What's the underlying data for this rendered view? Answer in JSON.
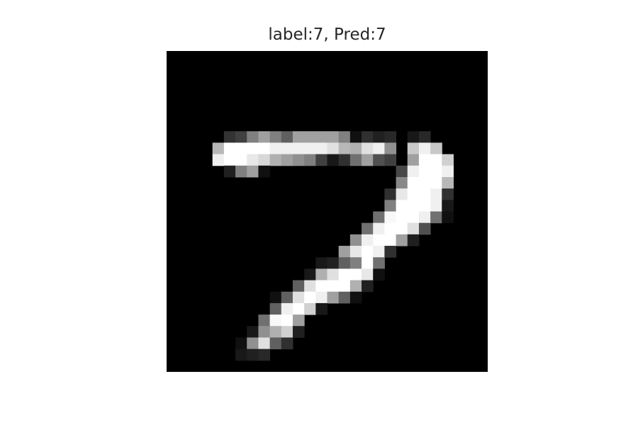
{
  "figure": {
    "title": "label:7, Pred:7"
  },
  "image": {
    "colormap": "gray",
    "grid_rows": 28,
    "grid_cols": 28,
    "pixels": [
      [
        0,
        0,
        0,
        0,
        0,
        0,
        0,
        0,
        0,
        0,
        0,
        0,
        0,
        0,
        0,
        0,
        0,
        0,
        0,
        0,
        0,
        0,
        0,
        0,
        0,
        0,
        0,
        0
      ],
      [
        0,
        0,
        0,
        0,
        0,
        0,
        0,
        0,
        0,
        0,
        0,
        0,
        0,
        0,
        0,
        0,
        0,
        0,
        0,
        0,
        0,
        0,
        0,
        0,
        0,
        0,
        0,
        0
      ],
      [
        0,
        0,
        0,
        0,
        0,
        0,
        0,
        0,
        0,
        0,
        0,
        0,
        0,
        0,
        0,
        0,
        0,
        0,
        0,
        0,
        0,
        0,
        0,
        0,
        0,
        0,
        0,
        0
      ],
      [
        0,
        0,
        0,
        0,
        0,
        0,
        0,
        0,
        0,
        0,
        0,
        0,
        0,
        0,
        0,
        0,
        0,
        0,
        0,
        0,
        0,
        0,
        0,
        0,
        0,
        0,
        0,
        0
      ],
      [
        0,
        0,
        0,
        0,
        0,
        0,
        0,
        0,
        0,
        0,
        0,
        0,
        0,
        0,
        0,
        0,
        0,
        0,
        0,
        0,
        0,
        0,
        0,
        0,
        0,
        0,
        0,
        0
      ],
      [
        0,
        0,
        0,
        0,
        0,
        0,
        0,
        0,
        0,
        0,
        0,
        0,
        0,
        0,
        0,
        0,
        0,
        0,
        0,
        0,
        0,
        0,
        0,
        0,
        0,
        0,
        0,
        0
      ],
      [
        0,
        0,
        0,
        0,
        0,
        0,
        0,
        0,
        0,
        0,
        0,
        0,
        0,
        0,
        0,
        0,
        0,
        0,
        0,
        0,
        0,
        0,
        0,
        0,
        0,
        0,
        0,
        0
      ],
      [
        0,
        0,
        0,
        0,
        0,
        51,
        64,
        128,
        160,
        128,
        96,
        160,
        160,
        160,
        160,
        128,
        16,
        48,
        32,
        40,
        0,
        24,
        40,
        0,
        0,
        0,
        0,
        0
      ],
      [
        0,
        0,
        0,
        0,
        184,
        255,
        255,
        255,
        255,
        240,
        240,
        240,
        240,
        240,
        224,
        184,
        176,
        224,
        240,
        144,
        0,
        200,
        240,
        200,
        0,
        0,
        0,
        0
      ],
      [
        0,
        0,
        0,
        0,
        240,
        255,
        255,
        232,
        216,
        176,
        160,
        144,
        128,
        64,
        24,
        48,
        112,
        160,
        80,
        64,
        0,
        160,
        255,
        255,
        208,
        0,
        0,
        0
      ],
      [
        0,
        0,
        0,
        0,
        0,
        32,
        128,
        160,
        16,
        0,
        0,
        0,
        0,
        0,
        0,
        0,
        0,
        0,
        0,
        0,
        72,
        240,
        255,
        255,
        240,
        0,
        0,
        0
      ],
      [
        0,
        0,
        0,
        0,
        0,
        0,
        0,
        0,
        0,
        0,
        0,
        0,
        0,
        0,
        0,
        0,
        0,
        0,
        0,
        0,
        136,
        255,
        255,
        255,
        184,
        0,
        0,
        0
      ],
      [
        0,
        0,
        0,
        0,
        0,
        0,
        0,
        0,
        0,
        0,
        0,
        0,
        0,
        0,
        0,
        0,
        0,
        0,
        0,
        48,
        232,
        255,
        255,
        240,
        48,
        0,
        0,
        0
      ],
      [
        0,
        0,
        0,
        0,
        0,
        0,
        0,
        0,
        0,
        0,
        0,
        0,
        0,
        0,
        0,
        0,
        0,
        0,
        0,
        128,
        255,
        255,
        255,
        240,
        24,
        0,
        0,
        0
      ],
      [
        0,
        0,
        0,
        0,
        0,
        0,
        0,
        0,
        0,
        0,
        0,
        0,
        0,
        0,
        0,
        0,
        0,
        0,
        112,
        248,
        255,
        255,
        240,
        112,
        16,
        0,
        0,
        0
      ],
      [
        0,
        0,
        0,
        0,
        0,
        0,
        0,
        0,
        0,
        0,
        0,
        0,
        0,
        0,
        0,
        0,
        0,
        112,
        240,
        255,
        255,
        224,
        80,
        0,
        0,
        0,
        0,
        0
      ],
      [
        0,
        0,
        0,
        0,
        0,
        0,
        0,
        0,
        0,
        0,
        0,
        0,
        0,
        0,
        0,
        0,
        144,
        240,
        255,
        255,
        160,
        32,
        0,
        0,
        0,
        0,
        0,
        0
      ],
      [
        0,
        0,
        0,
        0,
        0,
        0,
        0,
        0,
        0,
        0,
        0,
        0,
        0,
        0,
        0,
        160,
        232,
        255,
        240,
        48,
        0,
        0,
        0,
        0,
        0,
        0,
        0,
        0
      ],
      [
        0,
        0,
        0,
        0,
        0,
        0,
        0,
        0,
        0,
        0,
        0,
        0,
        0,
        24,
        32,
        96,
        128,
        255,
        112,
        0,
        0,
        0,
        0,
        0,
        0,
        0,
        0,
        0
      ],
      [
        0,
        0,
        0,
        0,
        0,
        0,
        0,
        0,
        0,
        0,
        0,
        0,
        24,
        176,
        224,
        255,
        255,
        232,
        16,
        0,
        0,
        0,
        0,
        0,
        0,
        0,
        0,
        0
      ],
      [
        0,
        0,
        0,
        0,
        0,
        0,
        0,
        0,
        0,
        0,
        0,
        96,
        224,
        255,
        255,
        255,
        176,
        32,
        0,
        0,
        0,
        0,
        0,
        0,
        0,
        0,
        0,
        0
      ],
      [
        0,
        0,
        0,
        0,
        0,
        0,
        0,
        0,
        0,
        16,
        96,
        224,
        255,
        240,
        160,
        96,
        16,
        0,
        0,
        0,
        0,
        0,
        0,
        0,
        0,
        0,
        0,
        0
      ],
      [
        0,
        0,
        0,
        0,
        0,
        0,
        0,
        0,
        0,
        96,
        240,
        255,
        208,
        24,
        0,
        0,
        0,
        0,
        0,
        0,
        0,
        0,
        0,
        0,
        0,
        0,
        0,
        0
      ],
      [
        0,
        0,
        0,
        0,
        0,
        0,
        0,
        0,
        112,
        248,
        255,
        160,
        0,
        0,
        0,
        0,
        0,
        0,
        0,
        0,
        0,
        0,
        0,
        0,
        0,
        0,
        0,
        0
      ],
      [
        0,
        0,
        0,
        0,
        0,
        0,
        0,
        24,
        144,
        176,
        208,
        32,
        0,
        0,
        0,
        0,
        0,
        0,
        0,
        0,
        0,
        0,
        0,
        0,
        0,
        0,
        0,
        0
      ],
      [
        0,
        0,
        0,
        0,
        0,
        0,
        16,
        144,
        224,
        96,
        48,
        0,
        0,
        0,
        0,
        0,
        0,
        0,
        0,
        0,
        0,
        0,
        0,
        0,
        0,
        0,
        0,
        0
      ],
      [
        0,
        0,
        0,
        0,
        0,
        0,
        24,
        32,
        40,
        0,
        0,
        0,
        0,
        0,
        0,
        0,
        0,
        0,
        0,
        0,
        0,
        0,
        0,
        0,
        0,
        0,
        0,
        0
      ],
      [
        0,
        0,
        0,
        0,
        0,
        0,
        0,
        0,
        0,
        0,
        0,
        0,
        0,
        0,
        0,
        0,
        0,
        0,
        0,
        0,
        0,
        0,
        0,
        0,
        0,
        0,
        0,
        0
      ]
    ]
  }
}
